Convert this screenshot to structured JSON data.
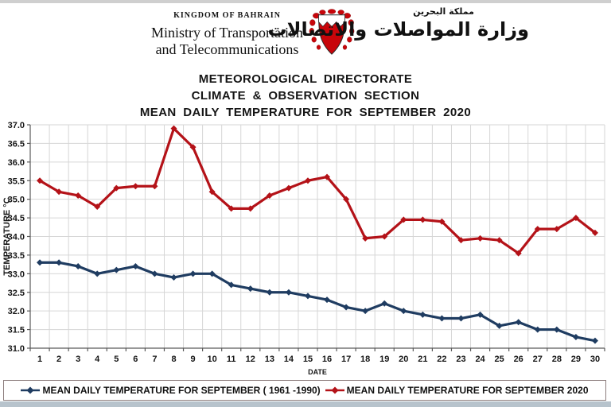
{
  "header": {
    "kingdom": "KINGDOM OF BAHRAIN",
    "ministry_line1": "Ministry of Transportation",
    "ministry_line2": "and Telecommunications",
    "arabic_small": "مملكة البحرين",
    "arabic_large": "وزارة المواصلات والاتصالات",
    "emblem_icon": "bahrain-coat-of-arms",
    "emblem_red": "#c8050a"
  },
  "title": {
    "line1": "METEOROLOGICAL DIRECTORATE",
    "line2": "CLIMATE & OBSERVATION SECTION",
    "line3": "MEAN DAILY TEMPERATURE FOR SEPTEMBER 2020"
  },
  "chart_data": {
    "type": "line",
    "x": [
      1,
      2,
      3,
      4,
      5,
      6,
      7,
      8,
      9,
      10,
      11,
      12,
      13,
      14,
      15,
      16,
      17,
      18,
      19,
      20,
      21,
      22,
      23,
      24,
      25,
      26,
      27,
      28,
      29,
      30
    ],
    "xlabel": "DATE",
    "ylabel": "TEMPERATURE °C",
    "ylim": [
      31.0,
      37.0
    ],
    "ytick_step": 0.5,
    "grid": true,
    "legend_position": "bottom",
    "grid_color": "#d6d6d6",
    "axis_color": "#5a5a5a",
    "series": [
      {
        "name": "MEAN DAILY TEMPERATURE FOR SEPTEMBER ( 1961 -1990)",
        "color": "#1f3c61",
        "values": [
          33.3,
          33.3,
          33.2,
          33.0,
          33.1,
          33.2,
          33.0,
          32.9,
          33.0,
          33.0,
          32.7,
          32.6,
          32.5,
          32.5,
          32.4,
          32.3,
          32.1,
          32.0,
          32.2,
          32.0,
          31.9,
          31.8,
          31.8,
          31.9,
          31.6,
          31.7,
          31.5,
          31.5,
          31.3,
          31.2
        ]
      },
      {
        "name": "MEAN DAILY TEMPERATURE FOR SEPTEMBER 2020",
        "color": "#b41218",
        "values": [
          35.5,
          35.2,
          35.1,
          34.8,
          35.3,
          35.35,
          35.35,
          36.9,
          36.4,
          35.2,
          34.75,
          34.75,
          35.1,
          35.3,
          35.5,
          35.6,
          35.0,
          33.95,
          34.0,
          34.45,
          34.45,
          34.4,
          33.9,
          33.95,
          33.9,
          33.55,
          34.2,
          34.2,
          34.5,
          34.1
        ]
      }
    ]
  }
}
